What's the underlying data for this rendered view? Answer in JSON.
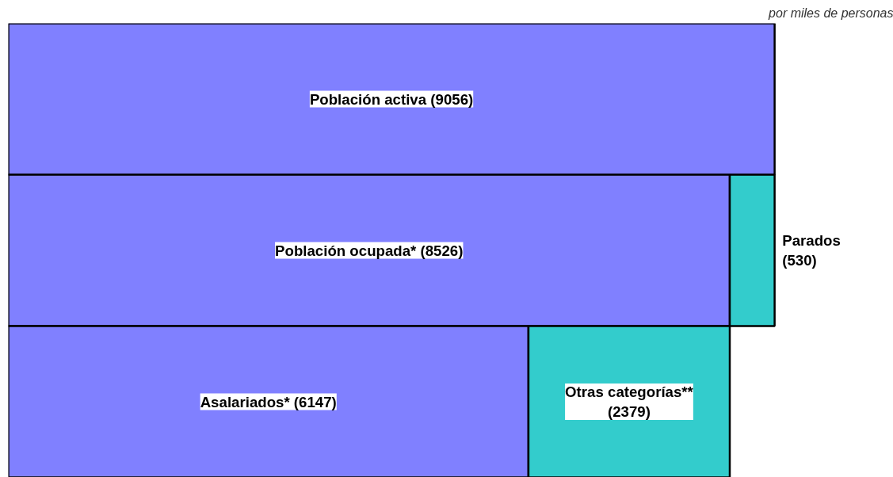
{
  "chart_data": {
    "type": "bar",
    "orientation": "horizontal",
    "stacked": true,
    "subtitle": "por miles de personas",
    "categories": [
      null,
      null,
      null
    ],
    "series": [
      {
        "color": "#8080ff",
        "values": [
          9056,
          8526,
          6147
        ],
        "value_labels": [
          "Población activa (9056)",
          "Población ocupada* (8526)",
          "Asalariados* (6147)"
        ]
      },
      {
        "color": "#33cccc",
        "values": [
          null,
          530,
          2379
        ],
        "value_labels": [
          null,
          "Parados\n(530)",
          "Otras categorías**\n(2379)"
        ]
      }
    ],
    "grid": false
  }
}
